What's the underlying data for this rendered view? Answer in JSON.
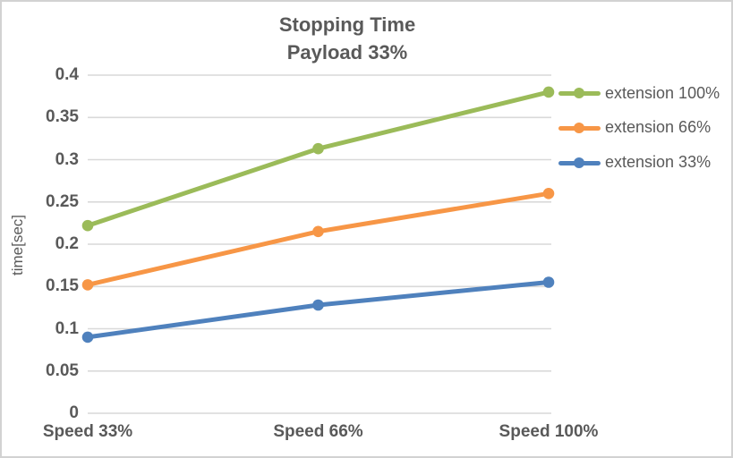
{
  "chart_data": {
    "type": "line",
    "title": "Stopping Time",
    "subtitle": "Payload 33%",
    "categories": [
      "Speed 33%",
      "Speed 66%",
      "Speed 100%"
    ],
    "series": [
      {
        "name": "extension 100%",
        "color": "#9BBB59",
        "values": [
          0.222,
          0.313,
          0.38
        ]
      },
      {
        "name": "extension 66%",
        "color": "#F79646",
        "values": [
          0.152,
          0.215,
          0.26
        ]
      },
      {
        "name": "extension 33%",
        "color": "#4F81BD",
        "values": [
          0.09,
          0.128,
          0.155
        ]
      }
    ],
    "xlabel": "",
    "ylabel": "time[sec]",
    "ylim": [
      0,
      0.4
    ],
    "ytick_values": [
      0,
      0.05,
      0.1,
      0.15,
      0.2,
      0.25,
      0.3,
      0.35,
      0.4
    ],
    "ytick_labels": [
      "0",
      "0.05",
      "0.1",
      "0.15",
      "0.2",
      "0.25",
      "0.3",
      "0.35",
      "0.4"
    ],
    "grid": "horizontal",
    "gridline_color": "#d9d9d9",
    "axis_text_color": "#595959",
    "legend_position": "right",
    "marker": "circle"
  }
}
